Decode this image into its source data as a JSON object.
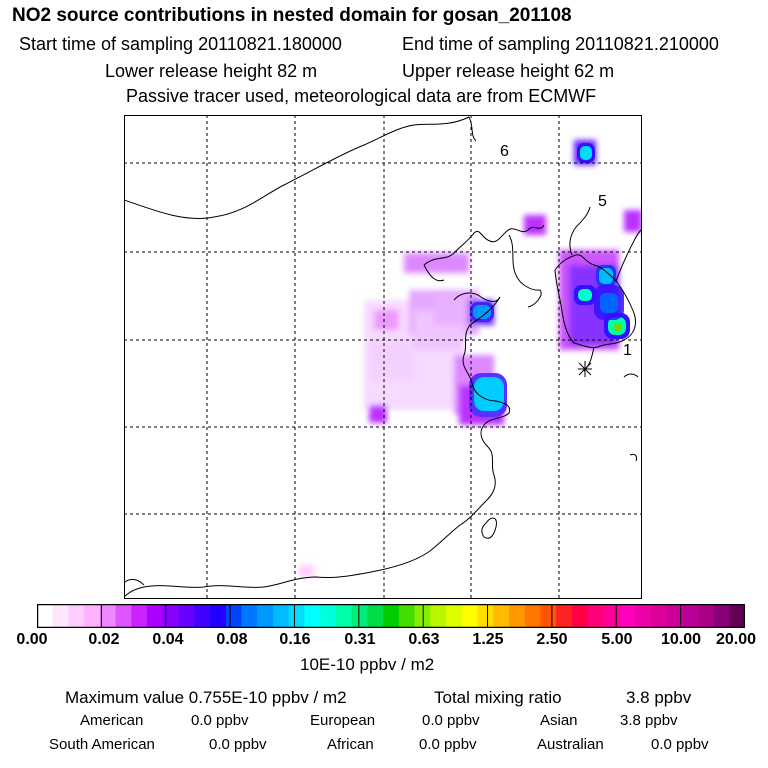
{
  "header": {
    "title": "NO2 source contributions in nested domain for gosan_201108",
    "start_label": "Start time of sampling 20110821.180000",
    "end_label": "End time of sampling 20110821.210000",
    "lower_label": "Lower release height   82 m",
    "upper_label": "Upper release height   62 m",
    "tracer_note": "Passive tracer used, meteorological data are from ECMWF"
  },
  "map": {
    "region_labels": [
      "6",
      "5",
      "1"
    ],
    "receptor_marker": "asterisk-receptor"
  },
  "legend": {
    "ticks": [
      "0.00",
      "0.02",
      "0.04",
      "0.08",
      "0.16",
      "0.31",
      "0.63",
      "1.25",
      "2.50",
      "5.00",
      "10.00",
      "20.00"
    ],
    "units": "10E-10 ppbv / m2",
    "colors": [
      "#ffffff",
      "#ffe6ff",
      "#ffccff",
      "#ffb3ff",
      "#ee88ff",
      "#dd55ff",
      "#cc22ff",
      "#aa00ff",
      "#8800ff",
      "#6600ff",
      "#4400ff",
      "#2200ff",
      "#0044ff",
      "#0077ff",
      "#0099ff",
      "#00bbff",
      "#00ddff",
      "#00ffff",
      "#00ffdd",
      "#00ffaa",
      "#00ee77",
      "#00dd44",
      "#00cc00",
      "#44dd00",
      "#88ee00",
      "#bbf500",
      "#ddff00",
      "#ffff00",
      "#ffdd00",
      "#ffbb00",
      "#ff9900",
      "#ff7700",
      "#ff5500",
      "#ff2222",
      "#ff0044",
      "#ff0077",
      "#ff0099",
      "#ff00bb",
      "#ee00aa",
      "#dd0099",
      "#cc0099",
      "#bb0099",
      "#aa0088",
      "#880077",
      "#660055"
    ]
  },
  "stats": {
    "max_label": "Maximum value  0.755E-10 ppbv / m2",
    "total_label": "Total mixing ratio",
    "total_value": "3.8 ppbv",
    "american_label": "American",
    "american_value": "0.0 ppbv",
    "european_label": "European",
    "european_value": "0.0 ppbv",
    "asian_label": "Asian",
    "asian_value": "3.8 ppbv",
    "south_american_label": "South American",
    "south_american_value": "0.0 ppbv",
    "african_label": "African",
    "african_value": "0.0 ppbv",
    "australian_label": "Australian",
    "australian_value": "0.0 ppbv"
  }
}
